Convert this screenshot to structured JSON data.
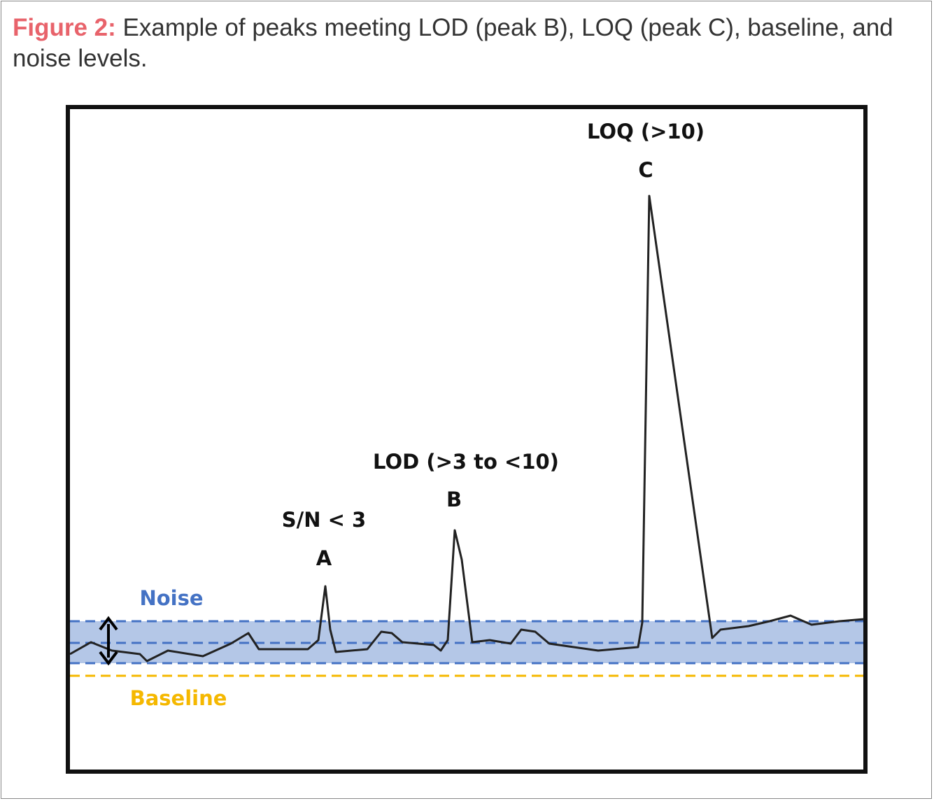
{
  "caption": {
    "label": "Figure 2:",
    "text": "Example of peaks meeting LOD (peak B), LOQ (peak C), baseline, and noise levels."
  },
  "peaks": [
    {
      "letter": "A",
      "annotation": "S/N < 3"
    },
    {
      "letter": "B",
      "annotation": "LOD (>3 to <10)"
    },
    {
      "letter": "C",
      "annotation": "LOQ (>10)"
    }
  ],
  "noise_label": "Noise",
  "baseline_label": "Baseline"
}
